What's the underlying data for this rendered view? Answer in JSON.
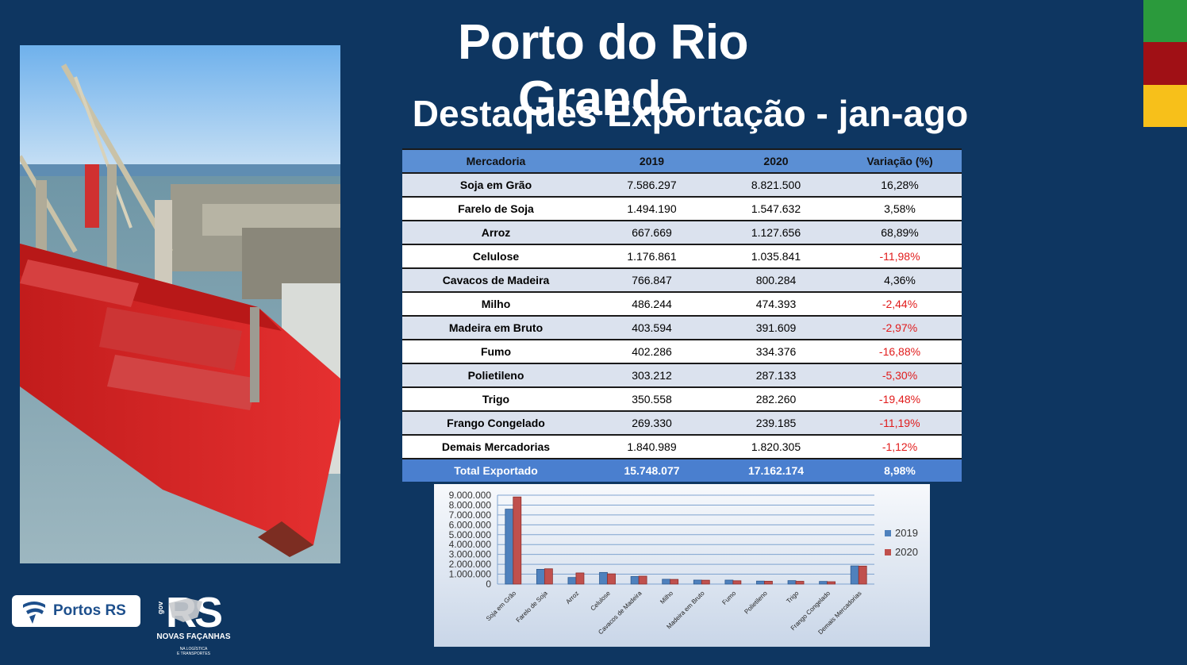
{
  "title": "Porto do Rio Grande",
  "subtitle": "Destaques Exportação - jan-ago",
  "flag_colors": [
    "#2b9a3c",
    "#a01015",
    "#f7c01a"
  ],
  "table": {
    "headers": [
      "Mercadoria",
      "2019",
      "2020",
      "Variação (%)"
    ],
    "rows": [
      {
        "name": "Soja em Grão",
        "y2019": "7.586.297",
        "y2020": "8.821.500",
        "var": "16,28%",
        "negative": false
      },
      {
        "name": "Farelo de Soja",
        "y2019": "1.494.190",
        "y2020": "1.547.632",
        "var": "3,58%",
        "negative": false
      },
      {
        "name": "Arroz",
        "y2019": "667.669",
        "y2020": "1.127.656",
        "var": "68,89%",
        "negative": false
      },
      {
        "name": "Celulose",
        "y2019": "1.176.861",
        "y2020": "1.035.841",
        "var": "-11,98%",
        "negative": true
      },
      {
        "name": "Cavacos de Madeira",
        "y2019": "766.847",
        "y2020": "800.284",
        "var": "4,36%",
        "negative": false
      },
      {
        "name": "Milho",
        "y2019": "486.244",
        "y2020": "474.393",
        "var": "-2,44%",
        "negative": true
      },
      {
        "name": "Madeira em Bruto",
        "y2019": "403.594",
        "y2020": "391.609",
        "var": "-2,97%",
        "negative": true
      },
      {
        "name": "Fumo",
        "y2019": "402.286",
        "y2020": "334.376",
        "var": "-16,88%",
        "negative": true
      },
      {
        "name": "Polietileno",
        "y2019": "303.212",
        "y2020": "287.133",
        "var": "-5,30%",
        "negative": true
      },
      {
        "name": "Trigo",
        "y2019": "350.558",
        "y2020": "282.260",
        "var": "-19,48%",
        "negative": true
      },
      {
        "name": "Frango Congelado",
        "y2019": "269.330",
        "y2020": "239.185",
        "var": "-11,19%",
        "negative": true
      },
      {
        "name": "Demais Mercadorias",
        "y2019": "1.840.989",
        "y2020": "1.820.305",
        "var": "-1,12%",
        "negative": true
      }
    ],
    "total": {
      "name": "Total Exportado",
      "y2019": "15.748.077",
      "y2020": "17.162.174",
      "var": "8,98%"
    }
  },
  "chart_data": {
    "type": "bar",
    "categories": [
      "Soja em Grão",
      "Farelo de Soja",
      "Arroz",
      "Celulose",
      "Cavacos de Madeira",
      "Milho",
      "Madeira em Bruto",
      "Fumo",
      "Polietileno",
      "Trigo",
      "Frango Congelado",
      "Demais Mercadorias"
    ],
    "series": [
      {
        "name": "2019",
        "color": "#4f81bd",
        "values": [
          7586297,
          1494190,
          667669,
          1176861,
          766847,
          486244,
          403594,
          402286,
          303212,
          350558,
          269330,
          1840989
        ]
      },
      {
        "name": "2020",
        "color": "#c0504d",
        "values": [
          8821500,
          1547632,
          1127656,
          1035841,
          800284,
          474393,
          391609,
          334376,
          287133,
          282260,
          239185,
          1820305
        ]
      }
    ],
    "ylim": [
      0,
      9000000
    ],
    "yticks": [
      "0",
      "1.000.000",
      "2.000.000",
      "3.000.000",
      "4.000.000",
      "5.000.000",
      "6.000.000",
      "7.000.000",
      "8.000.000",
      "9.000.000"
    ],
    "legend": "right",
    "grid": true
  },
  "logos": {
    "portos": "Portos RS",
    "rs_gov": "gov",
    "rs_main": "RS",
    "rs_tagline": "NOVAS FAÇANHAS",
    "rs_small1": "NA LOGÍSTICA",
    "rs_small2": "E TRANSPORTES"
  }
}
